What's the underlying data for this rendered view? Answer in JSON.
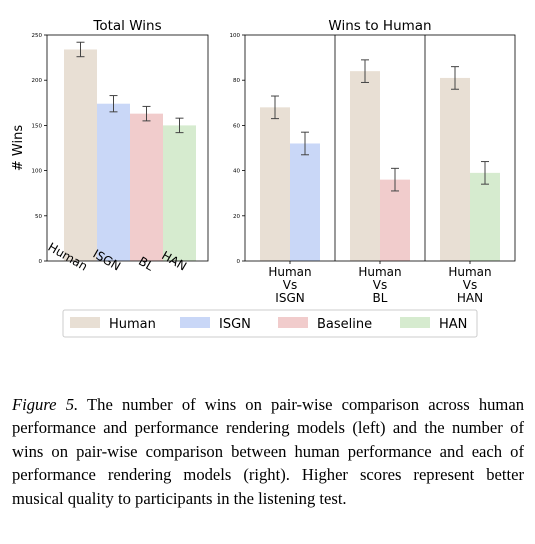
{
  "chart_data": [
    {
      "type": "bar",
      "title": "Total Wins",
      "ylabel": "# Wins",
      "xlabel": "",
      "ylim": [
        0,
        250
      ],
      "yticks": [
        0,
        50,
        100,
        150,
        200,
        250
      ],
      "grid": false,
      "categories": [
        "Human",
        "ISGN",
        "BL",
        "HAN"
      ],
      "values": [
        234,
        174,
        163,
        150
      ],
      "errors": [
        8,
        9,
        8,
        8
      ],
      "colors": [
        "#e8dfd4",
        "#c9d7f7",
        "#f1cccc",
        "#d6ebcf"
      ]
    },
    {
      "type": "bar",
      "title": "Wins to Human",
      "xlabel": "",
      "ylabel": "",
      "ylim": [
        0,
        100
      ],
      "yticks": [
        0,
        20,
        40,
        60,
        80,
        100
      ],
      "grid": false,
      "groups": [
        {
          "label_lines": [
            "Human",
            "Vs",
            "ISGN"
          ],
          "values": [
            68,
            52
          ],
          "errors": [
            5,
            5
          ],
          "colors": [
            "#e8dfd4",
            "#c9d7f7"
          ]
        },
        {
          "label_lines": [
            "Human",
            "Vs",
            "BL"
          ],
          "values": [
            84,
            36
          ],
          "errors": [
            5,
            5
          ],
          "colors": [
            "#e8dfd4",
            "#f1cccc"
          ]
        },
        {
          "label_lines": [
            "Human",
            "Vs",
            "HAN"
          ],
          "values": [
            81,
            39
          ],
          "errors": [
            5,
            5
          ],
          "colors": [
            "#e8dfd4",
            "#d6ebcf"
          ]
        }
      ]
    }
  ],
  "legend": {
    "placement": "bottom-center",
    "items": [
      {
        "label": "Human",
        "color": "#e8dfd4"
      },
      {
        "label": "ISGN",
        "color": "#c9d7f7"
      },
      {
        "label": "Baseline",
        "color": "#f1cccc"
      },
      {
        "label": "HAN",
        "color": "#d6ebcf"
      }
    ]
  },
  "caption": {
    "label": "Figure 5.",
    "text": "The number of wins on pair-wise comparison across human performance and performance rendering models (left) and the number of wins on pair-wise comparison between human performance and each of performance rendering models (right). Higher scores represent better musical quality to participants in the listening test."
  }
}
